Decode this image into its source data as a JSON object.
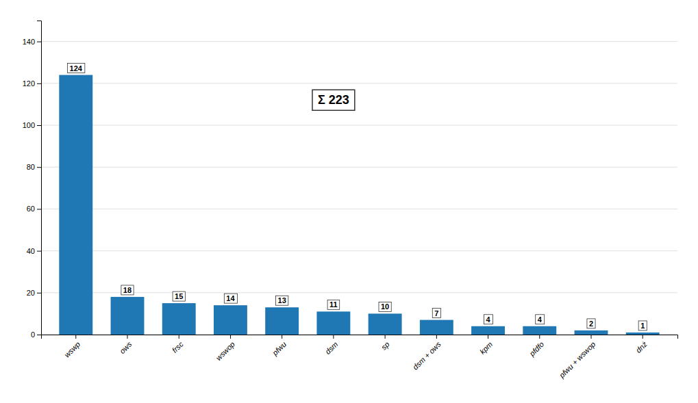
{
  "chart_data": {
    "type": "bar",
    "categories": [
      "wswp",
      "ows",
      "frsc",
      "wswop",
      "pfwu",
      "dsm",
      "sp",
      "dsm + ows",
      "kpm",
      "pfdfo",
      "pfwu + wswop",
      "dnż"
    ],
    "values": [
      124,
      18,
      15,
      14,
      13,
      11,
      10,
      7,
      4,
      4,
      2,
      1
    ],
    "ylim": [
      0,
      150
    ],
    "yticks": [
      0,
      20,
      40,
      60,
      80,
      100,
      120,
      140
    ],
    "grid": true,
    "data_labels": true,
    "annotations": [
      {
        "text": "Σ 223",
        "x": "dsm",
        "y": 112
      }
    ]
  }
}
